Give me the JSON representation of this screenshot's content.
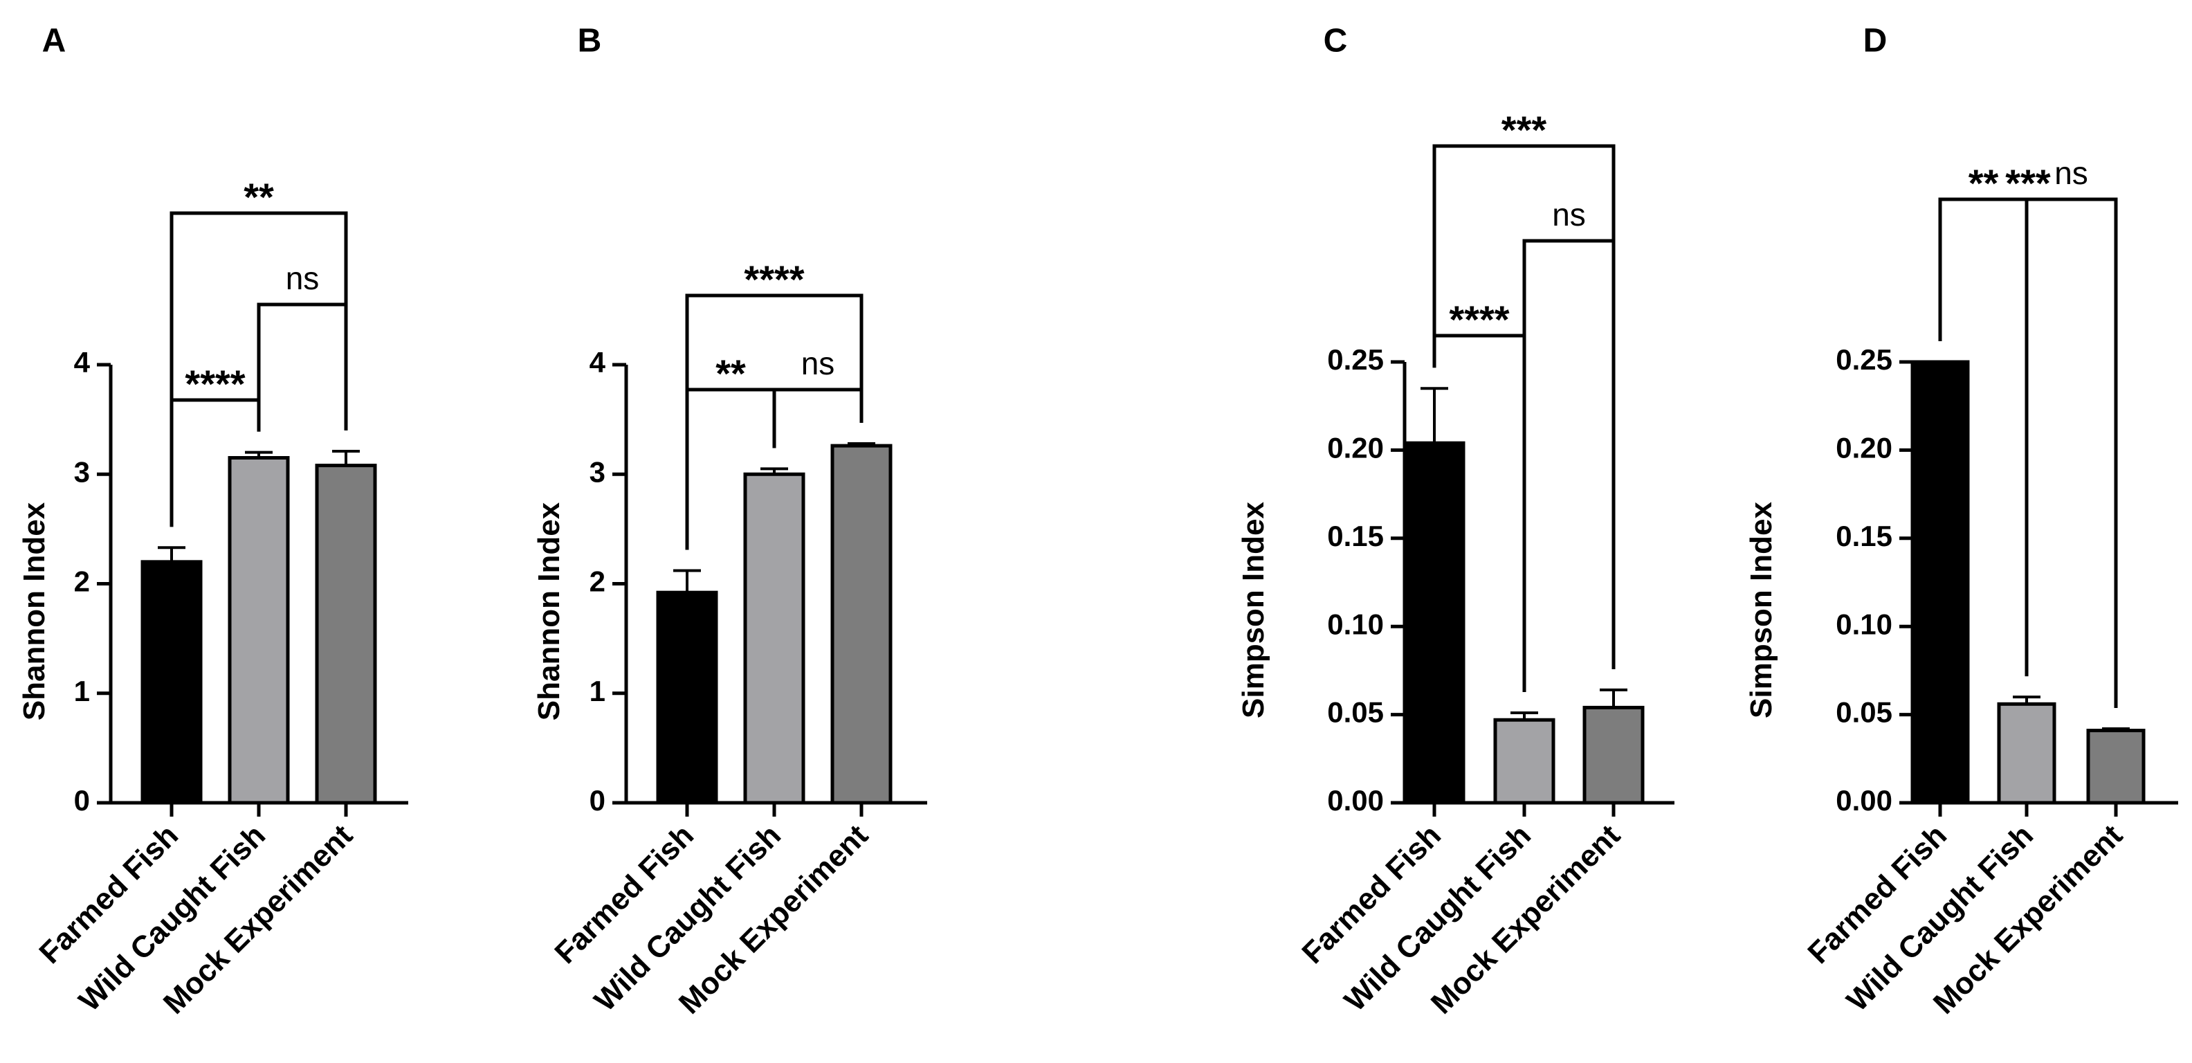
{
  "colors": {
    "bar_fills": [
      "#000000",
      "#a3a3a6",
      "#7d7d7d"
    ],
    "stroke": "#000000",
    "background": "#ffffff"
  },
  "chart_data": [
    {
      "panel": "A",
      "type": "bar",
      "categories": [
        "Farmed Fish",
        "Wild Caught Fish",
        "Mock Experiment"
      ],
      "values": [
        2.2,
        3.15,
        3.08
      ],
      "errors": [
        0.13,
        0.05,
        0.13
      ],
      "ylabel": "Shannon Index",
      "xlabel": "",
      "ylim": [
        0,
        4
      ],
      "yticks": [
        "0",
        "1",
        "2",
        "3",
        "4"
      ],
      "comparisons": [
        {
          "from": 0,
          "to": 1,
          "label": "****",
          "level": 0
        },
        {
          "from": 1,
          "to": 2,
          "label": "ns",
          "level": 1
        },
        {
          "from": 0,
          "to": 2,
          "label": "**",
          "level": 2
        }
      ]
    },
    {
      "panel": "B",
      "type": "bar",
      "categories": [
        "Farmed Fish",
        "Wild Caught Fish",
        "Mock Experiment"
      ],
      "values": [
        1.92,
        3.0,
        3.26
      ],
      "errors": [
        0.2,
        0.05,
        0.02
      ],
      "ylabel": "Shannon Index",
      "xlabel": "",
      "ylim": [
        0,
        4
      ],
      "yticks": [
        "0",
        "1",
        "2",
        "3",
        "4"
      ],
      "comparisons": [
        {
          "from": 0,
          "to": 1,
          "label": "**",
          "level": 0
        },
        {
          "from": 1,
          "to": 2,
          "label": "ns",
          "level": 0
        },
        {
          "from": 0,
          "to": 2,
          "label": "****",
          "level": 1
        }
      ]
    },
    {
      "panel": "C",
      "type": "bar",
      "categories": [
        "Farmed Fish",
        "Wild Caught Fish",
        "Mock Experiment"
      ],
      "values": [
        0.204,
        0.047,
        0.054
      ],
      "errors": [
        0.031,
        0.004,
        0.01
      ],
      "ylabel": "Simpson Index",
      "xlabel": "",
      "ylim": [
        0,
        0.25
      ],
      "yticks": [
        "0.00",
        "0.05",
        "0.10",
        "0.15",
        "0.20",
        "0.25"
      ],
      "comparisons": [
        {
          "from": 0,
          "to": 1,
          "label": "****",
          "level": 0
        },
        {
          "from": 1,
          "to": 2,
          "label": "ns",
          "level": 1
        },
        {
          "from": 0,
          "to": 2,
          "label": "***",
          "level": 2
        }
      ]
    },
    {
      "panel": "D",
      "type": "bar",
      "categories": [
        "Farmed Fish",
        "Wild Caught Fish",
        "Mock Experiment"
      ],
      "values": [
        0.25,
        0.056,
        0.041
      ],
      "errors": [
        0.0,
        0.004,
        0.001
      ],
      "ylabel": "Simpson Index",
      "xlabel": "",
      "ylim": [
        0,
        0.25
      ],
      "yticks": [
        "0.00",
        "0.05",
        "0.10",
        "0.15",
        "0.20",
        "0.25"
      ],
      "comparisons": [
        {
          "from": 0,
          "to": 1,
          "label": "**",
          "level": 0
        },
        {
          "from": 1,
          "to": 2,
          "label": "ns",
          "level": 0
        },
        {
          "from": 0,
          "to": 2,
          "label": "***",
          "level": 1
        }
      ]
    }
  ]
}
